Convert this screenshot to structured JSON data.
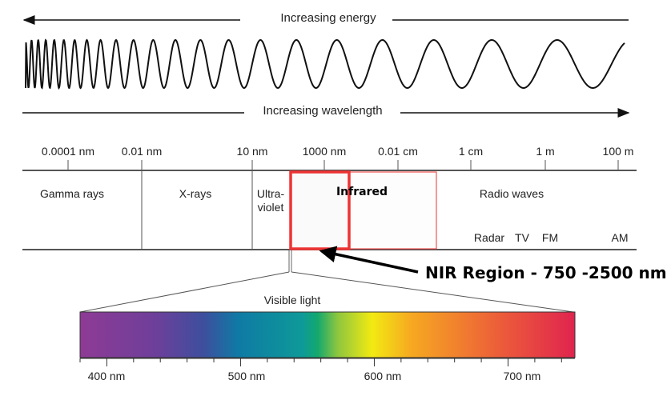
{
  "top_arrow": {
    "label": "Increasing energy"
  },
  "bottom_arrow": {
    "label": "Increasing wavelength"
  },
  "scale_ticks": [
    "0.0001 nm",
    "0.01 nm",
    "10 nm",
    "1000 nm",
    "0.01 cm",
    "1 cm",
    "1 m",
    "100 m"
  ],
  "regions": {
    "gamma": "Gamma rays",
    "xrays": "X-rays",
    "uv_line1": "Ultra-",
    "uv_line2": "violet",
    "infrared": "Infrared",
    "radio": "Radio waves",
    "radar": "Radar",
    "tv": "TV",
    "fm": "FM",
    "am": "AM"
  },
  "annotation": {
    "label": "NIR Region - 750 -2500 nm",
    "highlight_color": "#ee3333"
  },
  "visible": {
    "title": "Visible light",
    "ticks": [
      "400 nm",
      "500 nm",
      "600 nm",
      "700 nm"
    ],
    "range_nm": [
      380,
      750
    ]
  }
}
